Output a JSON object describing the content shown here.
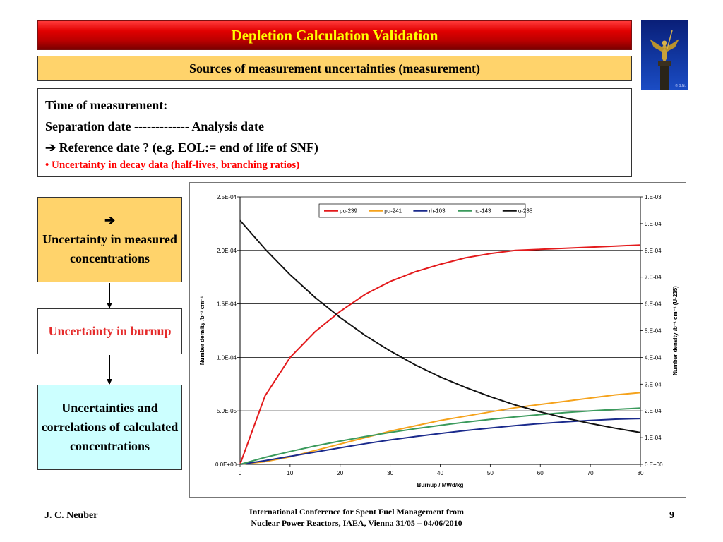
{
  "header": {
    "title": "Depletion Calculation Validation",
    "subtitle": "Sources of measurement uncertainties (measurement)"
  },
  "photo": {
    "credit": "© S.N."
  },
  "info": {
    "line1": "Time of measurement:",
    "line2": "Separation date  -------------  Analysis date",
    "line3": "➔ Reference date ? (e.g. EOL:= end of life of SNF)",
    "line4": "• Uncertainty in decay data (half-lives, branching ratios)"
  },
  "flow": {
    "box1_arrow": "➔",
    "box1_text": "Uncertainty in measured concentrations",
    "box2_text": "Uncertainty in burnup",
    "box3_text": "Uncertainties and correlations of calculated concentrations"
  },
  "footer": {
    "author": "J. C. Neuber",
    "conference_line1": "International Conference for Spent Fuel Management from",
    "conference_line2": "Nuclear Power Reactors, IAEA, Vienna 31/05 – 04/06/2010",
    "page": "9"
  },
  "chart_data": {
    "type": "line",
    "title": "",
    "xlabel": "Burnup / MWd/kg",
    "ylabel": "Number density /b⁻¹ cm⁻¹",
    "y2label": "Number density /b⁻¹ cm⁻¹ (U-235)",
    "xlim": [
      0,
      80
    ],
    "ylim": [
      0,
      0.00025
    ],
    "y2lim": [
      0,
      0.001
    ],
    "x_ticks": [
      "0",
      "10",
      "20",
      "30",
      "40",
      "50",
      "60",
      "70",
      "80"
    ],
    "y_ticks": [
      "0.0E+00",
      "5.0E-05",
      "1.0E-04",
      "1.5E-04",
      "2.0E-04",
      "2.5E-04"
    ],
    "y2_ticks": [
      "0.E+00",
      "1.E-04",
      "2.E-04",
      "3.E-04",
      "4.E-04",
      "5.E-04",
      "6.E-04",
      "7.E-04",
      "8.E-04",
      "9.E-04",
      "1.E-03"
    ],
    "grid": "horizontal major",
    "legend_position": "top",
    "x": [
      0,
      5,
      10,
      15,
      20,
      25,
      30,
      35,
      40,
      45,
      50,
      55,
      60,
      65,
      70,
      75,
      80
    ],
    "series": [
      {
        "name": "pu-239",
        "axis": "left",
        "color": "#e31a1c",
        "values": [
          0,
          6.4e-05,
          0.0001,
          0.000124,
          0.000143,
          0.000159,
          0.000171,
          0.00018,
          0.000187,
          0.000193,
          0.000197,
          0.0002,
          0.000201,
          0.000202,
          0.000203,
          0.000204,
          0.000205
        ]
      },
      {
        "name": "pu-241",
        "axis": "left",
        "color": "#f5a21b",
        "values": [
          0,
          2.5e-06,
          7e-06,
          1.3e-05,
          1.9e-05,
          2.5e-05,
          3.1e-05,
          3.6e-05,
          4.1e-05,
          4.5e-05,
          4.9e-05,
          5.3e-05,
          5.6e-05,
          5.9e-05,
          6.2e-05,
          6.5e-05,
          6.7e-05
        ]
      },
      {
        "name": "rh-103",
        "axis": "left",
        "color": "#1a2a8c",
        "values": [
          0,
          3.5e-06,
          7.5e-06,
          1.15e-05,
          1.55e-05,
          1.93e-05,
          2.28e-05,
          2.6e-05,
          2.89e-05,
          3.16e-05,
          3.4e-05,
          3.62e-05,
          3.81e-05,
          3.97e-05,
          4.11e-05,
          4.22e-05,
          4.28e-05
        ]
      },
      {
        "name": "nd-143",
        "axis": "left",
        "color": "#3a9a5c",
        "values": [
          0,
          6.5e-06,
          1.2e-05,
          1.72e-05,
          2.18e-05,
          2.6e-05,
          2.98e-05,
          3.33e-05,
          3.65e-05,
          3.94e-05,
          4.2e-05,
          4.44e-05,
          4.65e-05,
          4.84e-05,
          5e-05,
          5.14e-05,
          5.26e-05
        ]
      },
      {
        "name": "u-235",
        "axis": "right",
        "color": "#111111",
        "values": [
          0.000912,
          0.000805,
          0.000709,
          0.000624,
          0.000549,
          0.000482,
          0.000424,
          0.000372,
          0.000327,
          0.000288,
          0.000253,
          0.000222,
          0.000196,
          0.000173,
          0.000153,
          0.000135,
          0.000119
        ]
      }
    ]
  }
}
